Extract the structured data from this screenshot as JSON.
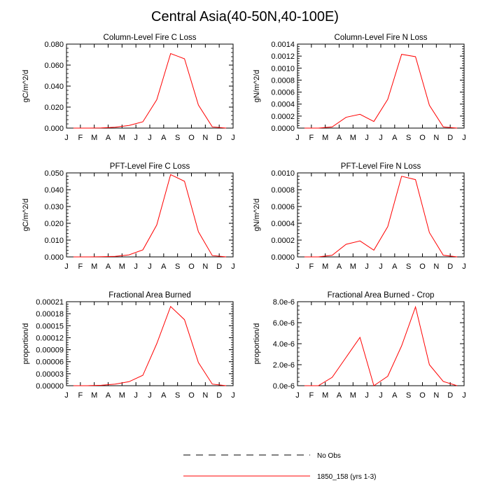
{
  "title": "Central Asia(40-50N,40-100E)",
  "series_color": "#ff0000",
  "x_tick_labels": [
    "J",
    "F",
    "M",
    "A",
    "M",
    "J",
    "J",
    "A",
    "S",
    "O",
    "N",
    "D",
    "J"
  ],
  "legend": {
    "no_obs": "No Obs",
    "model": "1850_158 (yrs 1-3)"
  },
  "chart_data": [
    {
      "type": "line",
      "title": "Column-Level Fire C Loss",
      "ylabel": "gC/m^2/d",
      "ylim": [
        0,
        0.08
      ],
      "yticks": [
        "0.000",
        "0.020",
        "0.040",
        "0.060",
        "0.080"
      ],
      "x": [
        0.5,
        1.5,
        2.5,
        3.5,
        4.5,
        5.5,
        6.5,
        7.5,
        8.5,
        9.5,
        10.5,
        11.5
      ],
      "series": [
        {
          "name": "1850_158 (yrs 1-3)",
          "values": [
            0.0,
            0.0,
            0.0002,
            0.0008,
            0.0025,
            0.006,
            0.027,
            0.071,
            0.066,
            0.022,
            0.0012,
            0.0
          ]
        }
      ]
    },
    {
      "type": "line",
      "title": "Column-Level Fire N Loss",
      "ylabel": "gN/m^2/d",
      "ylim": [
        0,
        0.0014
      ],
      "yticks": [
        "0.0000",
        "0.0002",
        "0.0004",
        "0.0006",
        "0.0008",
        "0.0010",
        "0.0012",
        "0.0014"
      ],
      "x": [
        0.5,
        1.5,
        2.5,
        3.5,
        4.5,
        5.5,
        6.5,
        7.5,
        8.5,
        9.5,
        10.5,
        11.5
      ],
      "series": [
        {
          "name": "1850_158 (yrs 1-3)",
          "values": [
            0.0,
            0.0,
            2e-05,
            0.00018,
            0.00023,
            0.00011,
            0.00048,
            0.00123,
            0.00119,
            0.00038,
            2e-05,
            0.0
          ]
        }
      ]
    },
    {
      "type": "line",
      "title": "PFT-Level Fire C Loss",
      "ylabel": "gC/m^2/d",
      "ylim": [
        0,
        0.05
      ],
      "yticks": [
        "0.000",
        "0.010",
        "0.020",
        "0.030",
        "0.040",
        "0.050"
      ],
      "x": [
        0.5,
        1.5,
        2.5,
        3.5,
        4.5,
        5.5,
        6.5,
        7.5,
        8.5,
        9.5,
        10.5,
        11.5
      ],
      "series": [
        {
          "name": "1850_158 (yrs 1-3)",
          "values": [
            0.0,
            0.0,
            0.0001,
            0.0003,
            0.0012,
            0.0042,
            0.019,
            0.049,
            0.045,
            0.015,
            0.0008,
            0.0
          ]
        }
      ]
    },
    {
      "type": "line",
      "title": "PFT-Level Fire N Loss",
      "ylabel": "gN/m^2/d",
      "ylim": [
        0,
        0.001
      ],
      "yticks": [
        "0.0000",
        "0.0002",
        "0.0004",
        "0.0006",
        "0.0008",
        "0.0010"
      ],
      "x": [
        0.5,
        1.5,
        2.5,
        3.5,
        4.5,
        5.5,
        6.5,
        7.5,
        8.5,
        9.5,
        10.5,
        11.5
      ],
      "series": [
        {
          "name": "1850_158 (yrs 1-3)",
          "values": [
            0.0,
            0.0,
            2e-05,
            0.00015,
            0.00019,
            8e-05,
            0.00036,
            0.00096,
            0.00092,
            0.00029,
            2e-05,
            0.0
          ]
        }
      ]
    },
    {
      "type": "line",
      "title": "Fractional Area Burned",
      "ylabel": "proportion/d",
      "ylim": [
        0,
        0.00021
      ],
      "yticks": [
        "0.00000",
        "0.00003",
        "0.00006",
        "0.00009",
        "0.00012",
        "0.00015",
        "0.00018",
        "0.00021"
      ],
      "x": [
        0.5,
        1.5,
        2.5,
        3.5,
        4.5,
        5.5,
        6.5,
        7.5,
        8.5,
        9.5,
        10.5,
        11.5
      ],
      "series": [
        {
          "name": "1850_158 (yrs 1-3)",
          "values": [
            0.0,
            0.0,
            1e-06,
            4e-06,
            1e-05,
            2.6e-05,
            0.000105,
            0.000198,
            0.000165,
            5.8e-05,
            4e-06,
            0.0
          ]
        }
      ]
    },
    {
      "type": "line",
      "title": "Fractional Area Burned - Crop",
      "ylabel": "proportion/d",
      "ylim": [
        0,
        8e-06
      ],
      "yticks": [
        "0.0e-6",
        "2.0e-6",
        "4.0e-6",
        "6.0e-6",
        "8.0e-6"
      ],
      "x": [
        0.5,
        1.5,
        2.5,
        3.5,
        4.5,
        5.5,
        6.5,
        7.5,
        8.5,
        9.5,
        10.5,
        11.5
      ],
      "series": [
        {
          "name": "1850_158 (yrs 1-3)",
          "values": [
            0.0,
            0.0,
            8e-07,
            2.7e-06,
            4.6e-06,
            0.0,
            9e-07,
            3.8e-06,
            7.5e-06,
            2e-06,
            4e-07,
            0.0
          ]
        }
      ]
    }
  ]
}
